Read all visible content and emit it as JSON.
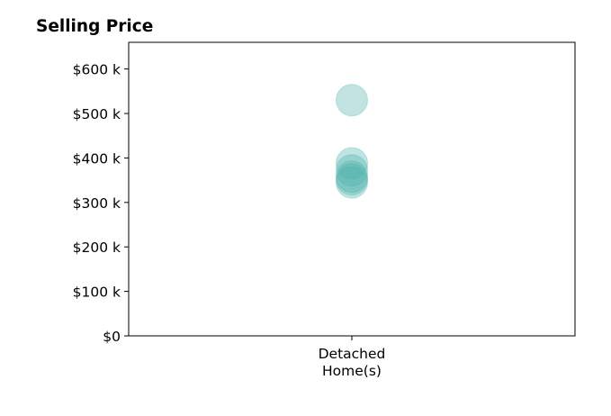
{
  "chart_data": {
    "type": "scatter",
    "title": "Selling Price",
    "xlabel": "",
    "ylabel": "",
    "categories": [
      "Detached\nHome(s)"
    ],
    "ylim": [
      0,
      660000
    ],
    "yticks": [
      {
        "value": 0,
        "label": "$0"
      },
      {
        "value": 100000,
        "label": "$100 k"
      },
      {
        "value": 200000,
        "label": "$200 k"
      },
      {
        "value": 300000,
        "label": "$300 k"
      },
      {
        "value": 400000,
        "label": "$400 k"
      },
      {
        "value": 500000,
        "label": "$500 k"
      },
      {
        "value": 600000,
        "label": "$600 k"
      }
    ],
    "grid": false,
    "series": [
      {
        "category": "Detached\nHome(s)",
        "values": [
          530000,
          388000,
          372000,
          358000,
          352000,
          345000
        ],
        "color": "#4db3ac",
        "opacity": 0.35
      }
    ]
  }
}
